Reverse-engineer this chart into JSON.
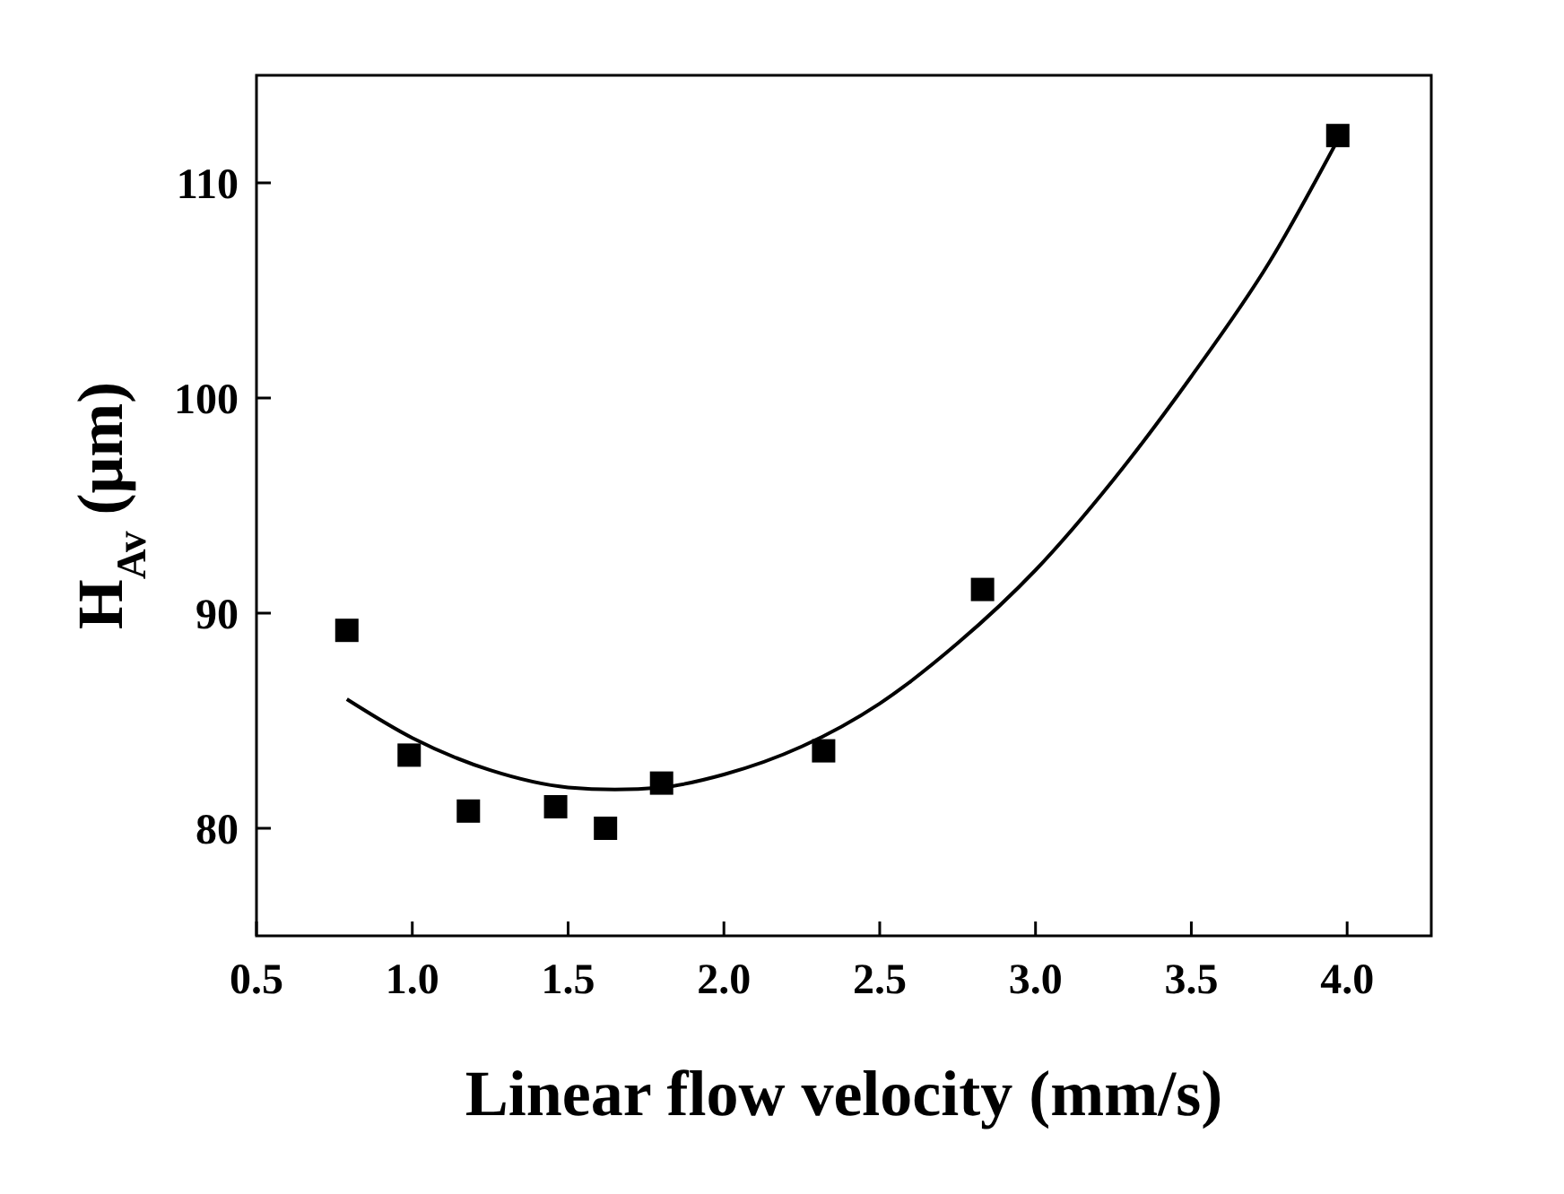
{
  "chart_data": {
    "type": "scatter",
    "xlabel": "Linear flow velocity (mm/s)",
    "ylabel": "H$_{Av}$ (μm)",
    "xlim": [
      0.5,
      4.27
    ],
    "ylim": [
      75,
      115
    ],
    "xticks": [
      {
        "value": 0.5,
        "label": "0.5"
      },
      {
        "value": 1,
        "label": "1.0"
      },
      {
        "value": 1.5,
        "label": "1.5"
      },
      {
        "value": 2,
        "label": "2.0"
      },
      {
        "value": 2.5,
        "label": "2.5"
      },
      {
        "value": 3,
        "label": "3.0"
      },
      {
        "value": 3.5,
        "label": "3.5"
      },
      {
        "value": 4,
        "label": "4.0"
      }
    ],
    "yticks": [
      80,
      90,
      100,
      110
    ],
    "grid": false,
    "series": [
      {
        "color": "#000000",
        "marker": "square",
        "x": [
          0.79,
          0.99,
          1.18,
          1.46,
          1.62,
          1.8,
          2.32,
          2.83,
          3.97
        ],
        "values": [
          89.2,
          83.4,
          80.8,
          81.0,
          80.0,
          82.1,
          83.6,
          91.1,
          112.2
        ]
      },
      {
        "type": "line",
        "color": "#000000",
        "line_style": "solid",
        "marker": "none",
        "x": [
          0.79,
          1.0,
          1.25,
          1.5,
          1.65,
          1.8,
          2.0,
          2.25,
          2.5,
          2.75,
          3.0,
          3.25,
          3.5,
          3.75,
          3.97
        ],
        "values": [
          86.0,
          84.2,
          82.7,
          81.9,
          81.8,
          81.9,
          82.5,
          83.8,
          85.8,
          88.6,
          92.0,
          96.2,
          101.0,
          106.3,
          112.0
        ]
      }
    ]
  }
}
